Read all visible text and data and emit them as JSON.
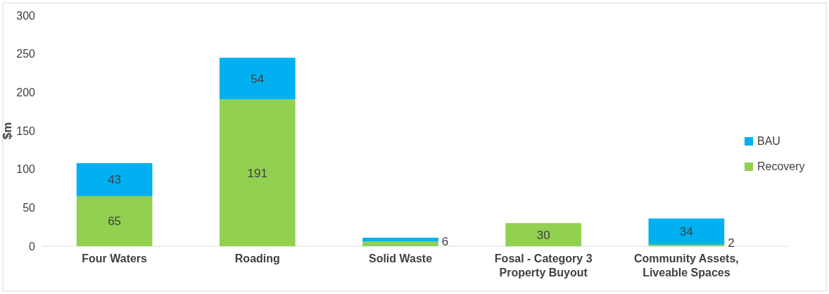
{
  "chart_data": {
    "type": "bar",
    "ylabel": "$m",
    "categories": [
      "Four Waters",
      "Roading",
      "Solid Waste",
      "Fosal - Category 3 Property Buyout",
      "Community Assets, Liveable Spaces"
    ],
    "stacked": true,
    "ylim": [
      0,
      300
    ],
    "yticks": [
      0,
      50,
      100,
      150,
      200,
      250,
      300
    ],
    "grid": false,
    "legend": "right",
    "series": [
      {
        "name": "Recovery",
        "color": "#92d050",
        "values": [
          65,
          191,
          6,
          30,
          2
        ],
        "value_labels": [
          "65",
          "191",
          "6",
          "30",
          "2"
        ]
      },
      {
        "name": "BAU",
        "color": "#00b0f0",
        "values": [
          43,
          54,
          5,
          null,
          34
        ],
        "value_labels": [
          "43",
          "54",
          null,
          null,
          "34"
        ]
      }
    ]
  }
}
